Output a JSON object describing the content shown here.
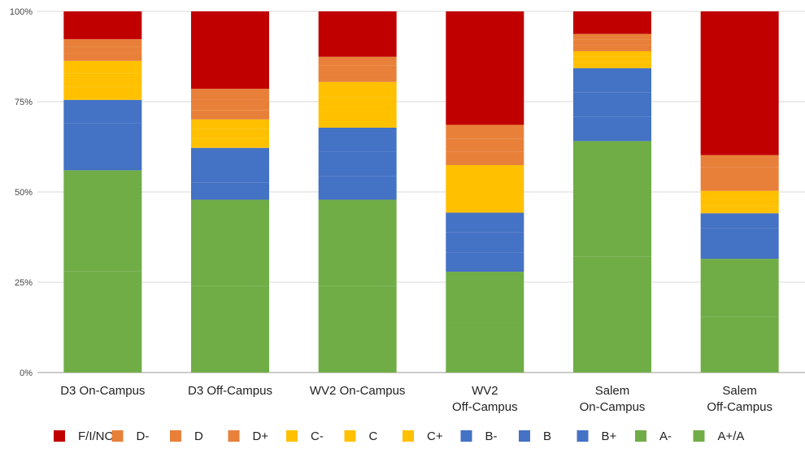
{
  "chart_data": {
    "type": "bar",
    "stacked": true,
    "percent_stacked": true,
    "categories": [
      [
        "D3 On-Campus"
      ],
      [
        "D3 Off-Campus"
      ],
      [
        "WV2 On-Campus"
      ],
      [
        "WV2",
        "Off-Campus"
      ],
      [
        "Salem",
        "On-Campus"
      ],
      [
        "Salem",
        "Off-Campus"
      ]
    ],
    "y_ticks": [
      "0%",
      "25%",
      "50%",
      "75%",
      "100%"
    ],
    "ylim": [
      0,
      100
    ],
    "grid": true,
    "legend_position": "bottom",
    "series": [
      {
        "name": "F/I/NC",
        "color": "#c00000",
        "values": [
          7.7,
          21.5,
          12.6,
          31.5,
          6.0,
          39.8
        ]
      },
      {
        "name": "D-",
        "color": "#e8803a",
        "values": [
          2.0,
          3.0,
          2.5,
          3.8,
          1.5,
          3.3
        ]
      },
      {
        "name": "D",
        "color": "#e8803a",
        "values": [
          2.0,
          3.0,
          2.3,
          3.7,
          1.5,
          3.3
        ]
      },
      {
        "name": "D+",
        "color": "#e8803a",
        "values": [
          2.0,
          2.5,
          2.2,
          3.7,
          1.6,
          3.3
        ]
      },
      {
        "name": "C-",
        "color": "#ffc000",
        "values": [
          3.6,
          2.7,
          4.2,
          4.4,
          1.5,
          2.2
        ]
      },
      {
        "name": "C",
        "color": "#ffc000",
        "values": [
          3.6,
          2.6,
          4.2,
          4.4,
          1.5,
          2.0
        ]
      },
      {
        "name": "C+",
        "color": "#ffc000",
        "values": [
          3.6,
          2.6,
          4.3,
          4.4,
          1.5,
          2.0
        ]
      },
      {
        "name": "B-",
        "color": "#4472c4",
        "values": [
          6.5,
          4.8,
          6.7,
          5.5,
          6.5,
          4.2
        ]
      },
      {
        "name": "B",
        "color": "#4472c4",
        "values": [
          6.5,
          4.8,
          6.7,
          5.5,
          6.5,
          4.2
        ]
      },
      {
        "name": "B+",
        "color": "#4472c4",
        "values": [
          6.5,
          4.8,
          6.6,
          5.4,
          6.4,
          4.2
        ]
      },
      {
        "name": "A-",
        "color": "#70ad47",
        "values": [
          28.0,
          24.0,
          24.0,
          14.0,
          30.8,
          16.0
        ]
      },
      {
        "name": "A+/A",
        "color": "#70ad47",
        "values": [
          28.0,
          24.0,
          24.0,
          14.0,
          30.8,
          15.5
        ]
      }
    ]
  }
}
